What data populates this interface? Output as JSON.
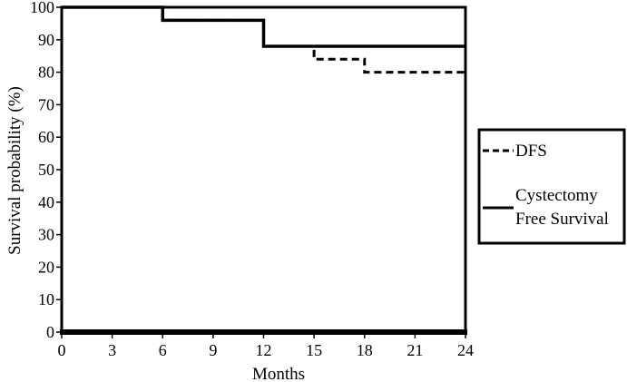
{
  "chart_data": {
    "type": "line",
    "step": true,
    "xlabel": "Months",
    "ylabel": "Survival probability (%)",
    "xlim": [
      0,
      24
    ],
    "ylim": [
      0,
      100
    ],
    "xticks": [
      0,
      3,
      6,
      9,
      12,
      15,
      18,
      21,
      24
    ],
    "yticks": [
      0,
      10,
      20,
      30,
      40,
      50,
      60,
      70,
      80,
      90,
      100
    ],
    "grid": false,
    "legend_position": "right",
    "series": [
      {
        "name": "DFS",
        "style": "dashed",
        "color": "#000000",
        "x": [
          0,
          6,
          12,
          15,
          18,
          24
        ],
        "y": [
          100,
          96,
          88,
          84,
          80,
          80
        ]
      },
      {
        "name": "Cystectomy Free Survival",
        "name_lines": [
          "Cystectomy",
          "Free Survival"
        ],
        "style": "solid",
        "color": "#000000",
        "x": [
          0,
          6,
          12,
          24
        ],
        "y": [
          100,
          96,
          88,
          88
        ]
      }
    ]
  }
}
